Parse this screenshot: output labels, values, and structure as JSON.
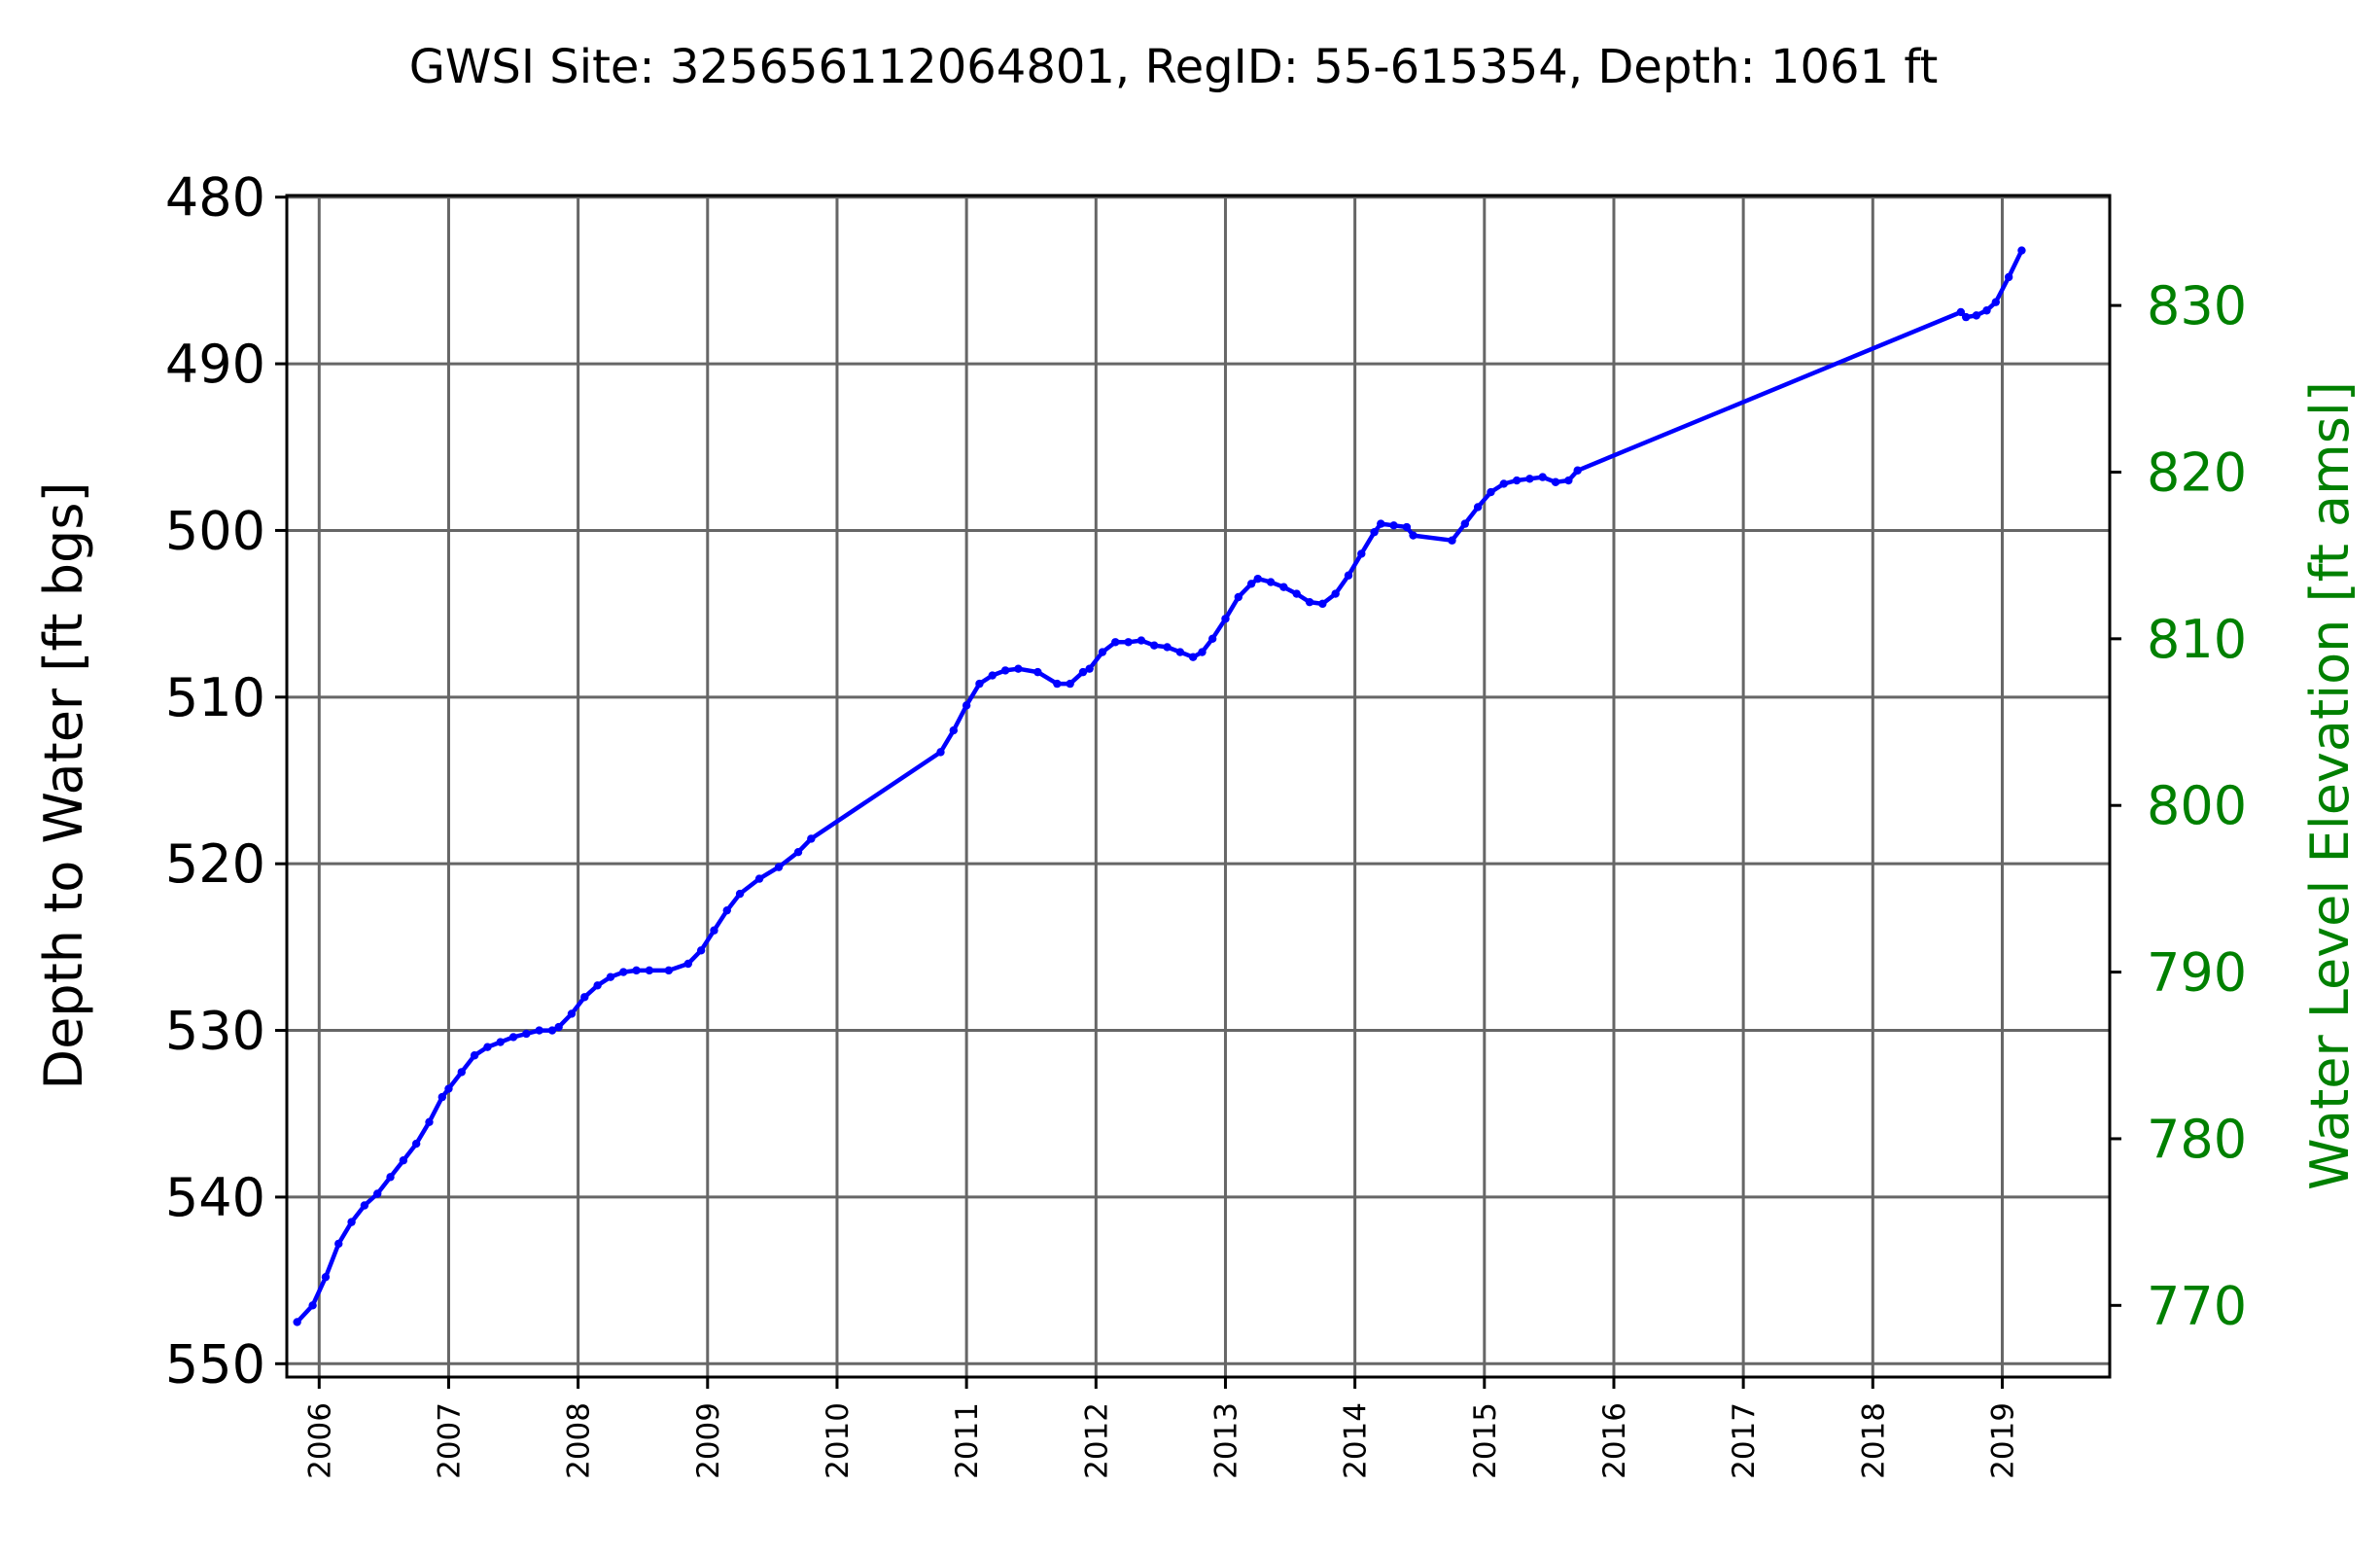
{
  "chart_data": {
    "type": "line",
    "title": "GWSI Site: 325656112064801, RegID: 55-615354, Depth: 1061 ft",
    "ylabel": "Depth to Water [ft bgs]",
    "y2label": "Water Level Elevation [ft amsl]",
    "ylim": [
      550.8,
      479.9
    ],
    "y2lim": [
      765.7,
      836.6
    ],
    "xlim": [
      2005.75,
      2019.83
    ],
    "yticks": [
      480,
      490,
      500,
      510,
      520,
      530,
      540,
      550
    ],
    "y2ticks": [
      770,
      780,
      790,
      800,
      810,
      820,
      830
    ],
    "xticks": [
      "2006",
      "2007",
      "2008",
      "2009",
      "2010",
      "2011",
      "2012",
      "2013",
      "2014",
      "2015",
      "2016",
      "2017",
      "2018",
      "2019"
    ],
    "grid": true,
    "colors": {
      "line": "#0000ff",
      "right_axis": "#008000",
      "grid": "#666666"
    },
    "series": [
      {
        "x": [
          2005.83,
          2005.95,
          2006.05,
          2006.15,
          2006.25,
          2006.35,
          2006.45,
          2006.55,
          2006.65,
          2006.75,
          2006.85,
          2006.95,
          2007.0,
          2007.1,
          2007.2,
          2007.3,
          2007.4,
          2007.5,
          2007.6,
          2007.7,
          2007.8,
          2007.85,
          2007.95,
          2008.05,
          2008.15,
          2008.25,
          2008.35,
          2008.45,
          2008.55,
          2008.7,
          2008.85,
          2008.95,
          2009.05,
          2009.15,
          2009.25,
          2009.4,
          2009.55,
          2009.7,
          2009.8,
          2010.8,
          2010.9,
          2011.0,
          2011.1,
          2011.2,
          2011.3,
          2011.4,
          2011.55,
          2011.7,
          2011.8,
          2011.9,
          2011.95,
          2012.05,
          2012.15,
          2012.25,
          2012.35,
          2012.45,
          2012.55,
          2012.65,
          2012.75,
          2012.82,
          2012.9,
          2013.0,
          2013.1,
          2013.2,
          2013.25,
          2013.35,
          2013.45,
          2013.55,
          2013.65,
          2013.75,
          2013.85,
          2013.95,
          2014.05,
          2014.15,
          2014.2,
          2014.3,
          2014.4,
          2014.45,
          2014.75,
          2014.85,
          2014.95,
          2015.05,
          2015.15,
          2015.25,
          2015.35,
          2015.45,
          2015.55,
          2015.65,
          2015.72,
          2018.68,
          2018.72,
          2018.8,
          2018.88,
          2018.95,
          2019.05,
          2019.15
        ],
        "y": [
          547.5,
          546.5,
          544.8,
          542.8,
          541.5,
          540.5,
          539.8,
          538.8,
          537.8,
          536.8,
          535.5,
          534.0,
          533.5,
          532.5,
          531.5,
          531.0,
          530.7,
          530.4,
          530.2,
          530.0,
          530.0,
          529.8,
          529.0,
          528.0,
          527.3,
          526.8,
          526.5,
          526.4,
          526.4,
          526.4,
          526.0,
          525.2,
          524.0,
          522.8,
          521.8,
          520.9,
          520.2,
          519.3,
          518.5,
          513.3,
          512.0,
          510.5,
          509.2,
          508.7,
          508.4,
          508.3,
          508.5,
          509.2,
          509.2,
          508.5,
          508.3,
          507.3,
          506.7,
          506.7,
          506.6,
          506.9,
          507.0,
          507.3,
          507.6,
          507.3,
          506.5,
          505.3,
          504.0,
          503.2,
          502.9,
          503.1,
          503.4,
          503.8,
          504.3,
          504.4,
          503.8,
          502.7,
          501.4,
          500.1,
          499.6,
          499.7,
          499.8,
          500.3,
          500.6,
          499.6,
          498.6,
          497.7,
          497.2,
          497.0,
          496.9,
          496.8,
          497.1,
          497.0,
          496.4,
          486.9,
          487.2,
          487.1,
          486.8,
          486.3,
          484.8,
          483.2
        ]
      }
    ]
  }
}
